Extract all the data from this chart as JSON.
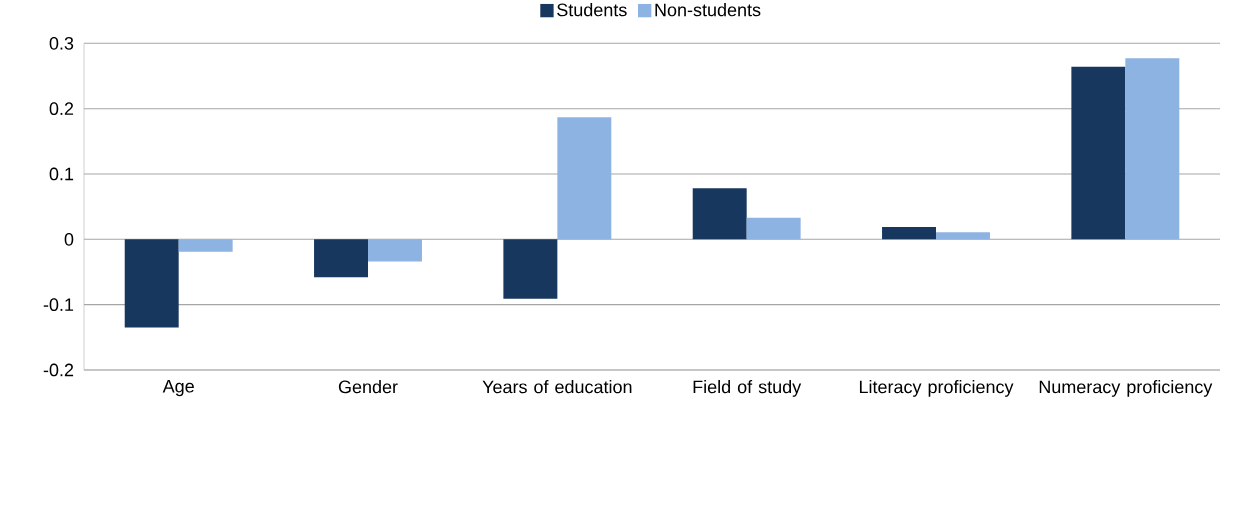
{
  "chart_data": {
    "type": "bar",
    "categories": [
      "Age",
      "Gender",
      "Years of education",
      "Field of study",
      "Literacy proficiency",
      "Numeracy proficiency"
    ],
    "series": [
      {
        "name": "Students",
        "color": "#17375e",
        "values": [
          -0.135,
          -0.058,
          -0.091,
          0.078,
          0.019,
          0.264
        ]
      },
      {
        "name": "Non-students",
        "color": "#8db3e2",
        "values": [
          -0.019,
          -0.034,
          0.187,
          0.033,
          0.011,
          0.277
        ]
      }
    ],
    "ylim": [
      -0.2,
      0.3
    ],
    "yticks": [
      -0.2,
      -0.1,
      0,
      0.1,
      0.2,
      0.3
    ],
    "grid": "y",
    "legend": "top"
  }
}
